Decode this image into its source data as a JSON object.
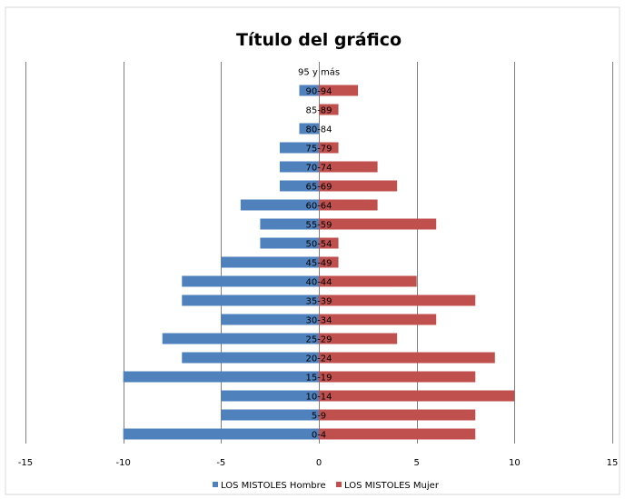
{
  "chart_data": {
    "type": "bar",
    "orientation": "horizontal",
    "title": "Título del gráfico",
    "categories": [
      "0-4",
      "5-9",
      "10-14",
      "15-19",
      "20-24",
      "25-29",
      "30-34",
      "35-39",
      "40-44",
      "45-49",
      "50-54",
      "55-59",
      "60-64",
      "65-69",
      "70-74",
      "75-79",
      "80-84",
      "85-89",
      "90-94",
      "95 y más"
    ],
    "series": [
      {
        "name": "LOS MISTOLES Hombre",
        "color": "#4F81BD",
        "values": [
          -10,
          -5,
          -5,
          -10,
          -7,
          -8,
          -5,
          -7,
          -7,
          -5,
          -3,
          -3,
          -4,
          -2,
          -2,
          -2,
          -1,
          0,
          -1,
          0
        ]
      },
      {
        "name": "LOS MISTOLES Mujer",
        "color": "#C0504D",
        "values": [
          8,
          8,
          10,
          8,
          9,
          4,
          6,
          8,
          5,
          1,
          1,
          6,
          3,
          4,
          3,
          1,
          0,
          1,
          2,
          0
        ]
      }
    ],
    "xlim": [
      -15,
      15
    ],
    "xticks": [
      -15,
      -10,
      -5,
      0,
      5,
      10,
      15
    ],
    "grid": true,
    "legend_position": "bottom"
  }
}
